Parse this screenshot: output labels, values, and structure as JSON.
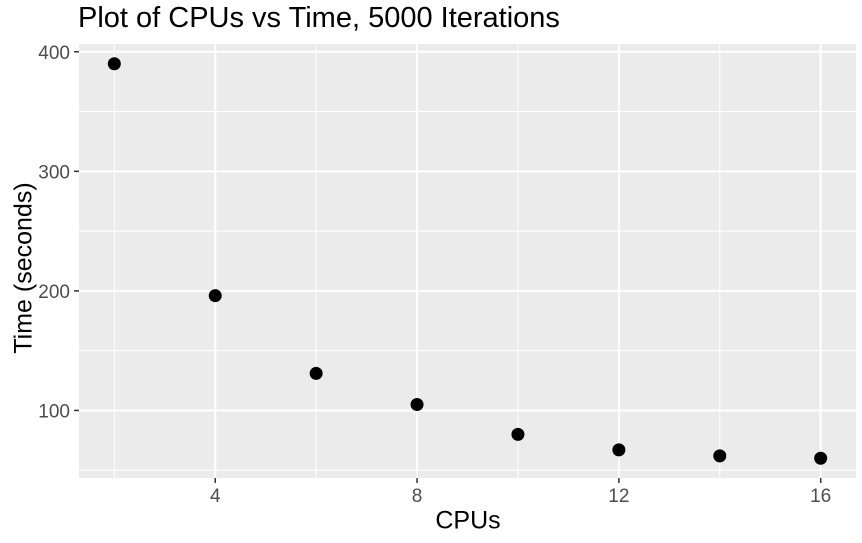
{
  "chart_data": {
    "type": "scatter",
    "title": "Plot of CPUs vs Time, 5000 Iterations",
    "xlabel": "CPUs",
    "ylabel": "Time (seconds)",
    "x": [
      2,
      4,
      6,
      8,
      10,
      12,
      14,
      16
    ],
    "y": [
      390,
      196,
      131,
      105,
      80,
      67,
      62,
      60
    ],
    "xlim": [
      1.3,
      16.7
    ],
    "ylim": [
      43.5,
      406.5
    ],
    "x_major_ticks": [
      4,
      8,
      12,
      16
    ],
    "y_major_ticks": [
      100,
      200,
      300,
      400
    ],
    "x_minor_ticks": [
      2,
      6,
      10,
      14
    ],
    "y_minor_ticks": [
      50,
      150,
      250,
      350
    ],
    "grid": "major+minor",
    "legend": "none",
    "colors": {
      "panel_background": "#EBEBEB",
      "gridline": "#FFFFFF",
      "point": "#000000",
      "tick_label": "#4D4D4D",
      "tick_mark": "#333333",
      "title_text": "#000000",
      "figure_background": "#FFFFFF"
    },
    "point_radius_px": 6.5
  }
}
